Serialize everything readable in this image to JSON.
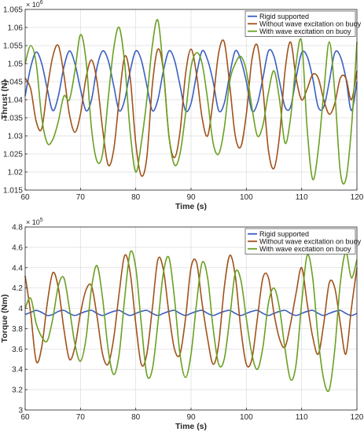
{
  "chart_data": [
    {
      "type": "line",
      "title": "",
      "xlabel": "Time (s)",
      "ylabel": "Thrust (N)",
      "xlim": [
        60,
        120
      ],
      "ylim": [
        1.015,
        1.065
      ],
      "y_exponent_label": "× 10",
      "y_exponent_power": "6",
      "xticks": [
        "60",
        "70",
        "80",
        "90",
        "100",
        "110",
        "120"
      ],
      "yticks": [
        "1.015",
        "1.02",
        "1.025",
        "1.03",
        "1.035",
        "1.04",
        "1.045",
        "1.05",
        "1.055",
        "1.06",
        "1.065"
      ],
      "grid": true,
      "legend_position": "top-right",
      "series": [
        {
          "name": "Rigid supported",
          "color": "#3a5fc0",
          "x": [
            60,
            61,
            62,
            63,
            64,
            65,
            66,
            67,
            68,
            69,
            70,
            71,
            72,
            73,
            74,
            75,
            76,
            77,
            78,
            79,
            80,
            81,
            82,
            83,
            84,
            85,
            86,
            87,
            88,
            89,
            90,
            91,
            92,
            93,
            94,
            95,
            96,
            97,
            98,
            99,
            100,
            101,
            102,
            103,
            104,
            105,
            106,
            107,
            108,
            109,
            110,
            111,
            112,
            113,
            114,
            115,
            116,
            117,
            118,
            119,
            120
          ],
          "values": [
            1.041,
            1.049,
            1.0532,
            1.05,
            1.043,
            1.037,
            1.041,
            1.049,
            1.0535,
            1.05,
            1.043,
            1.037,
            1.04,
            1.049,
            1.0535,
            1.051,
            1.044,
            1.037,
            1.04,
            1.048,
            1.0535,
            1.051,
            1.044,
            1.037,
            1.04,
            1.048,
            1.0535,
            1.051,
            1.044,
            1.037,
            1.039,
            1.047,
            1.0535,
            1.051,
            1.045,
            1.037,
            1.039,
            1.047,
            1.0535,
            1.051,
            1.045,
            1.037,
            1.039,
            1.046,
            1.0535,
            1.052,
            1.045,
            1.038,
            1.038,
            1.046,
            1.053,
            1.052,
            1.046,
            1.038,
            1.038,
            1.045,
            1.053,
            1.052,
            1.046,
            1.037,
            1.045
          ]
        },
        {
          "name": "Without wave excitation on buoy",
          "color": "#a0521a",
          "x": [
            60,
            61,
            62,
            63,
            64,
            65,
            66,
            67,
            68,
            69,
            70,
            71,
            72,
            73,
            74,
            75,
            76,
            77,
            78,
            79,
            80,
            81,
            82,
            83,
            84,
            85,
            86,
            87,
            88,
            89,
            90,
            91,
            92,
            93,
            94,
            95,
            96,
            97,
            98,
            99,
            100,
            101,
            102,
            103,
            104,
            105,
            106,
            107,
            108,
            109,
            110,
            111,
            112,
            113,
            114,
            115,
            116,
            117,
            118,
            119,
            120
          ],
          "values": [
            1.046,
            1.043,
            1.034,
            1.032,
            1.043,
            1.052,
            1.055,
            1.047,
            1.036,
            1.031,
            1.036,
            1.046,
            1.051,
            1.045,
            1.032,
            1.022,
            1.026,
            1.04,
            1.052,
            1.046,
            1.028,
            1.019,
            1.024,
            1.044,
            1.054,
            1.048,
            1.03,
            1.024,
            1.031,
            1.047,
            1.054,
            1.047,
            1.035,
            1.03,
            1.04,
            1.053,
            1.056,
            1.044,
            1.03,
            1.027,
            1.036,
            1.051,
            1.055,
            1.043,
            1.026,
            1.021,
            1.03,
            1.048,
            1.056,
            1.046,
            1.04,
            1.043,
            1.047,
            1.046,
            1.04,
            1.036,
            1.039,
            1.046,
            1.046,
            1.04,
            1.048
          ]
        },
        {
          "name": "With wave excitation on buoy",
          "color": "#6aa022",
          "x": [
            60,
            61,
            62,
            63,
            64,
            65,
            66,
            67,
            68,
            69,
            70,
            71,
            72,
            73,
            74,
            75,
            76,
            77,
            78,
            79,
            80,
            81,
            82,
            83,
            84,
            85,
            86,
            87,
            88,
            89,
            90,
            91,
            92,
            93,
            94,
            95,
            96,
            97,
            98,
            99,
            100,
            101,
            102,
            103,
            104,
            105,
            106,
            107,
            108,
            109,
            110,
            111,
            112,
            113,
            114,
            115,
            116,
            117,
            118,
            119,
            120
          ],
          "values": [
            1.05,
            1.055,
            1.05,
            1.035,
            1.028,
            1.029,
            1.034,
            1.041,
            1.04,
            1.048,
            1.058,
            1.051,
            1.032,
            1.023,
            1.025,
            1.04,
            1.054,
            1.06,
            1.05,
            1.031,
            1.02,
            1.028,
            1.04,
            1.055,
            1.062,
            1.048,
            1.03,
            1.022,
            1.025,
            1.036,
            1.049,
            1.053,
            1.05,
            1.04,
            1.028,
            1.025,
            1.032,
            1.045,
            1.05,
            1.052,
            1.048,
            1.038,
            1.03,
            1.033,
            1.042,
            1.048,
            1.04,
            1.028,
            1.035,
            1.05,
            1.056,
            1.032,
            1.018,
            1.026,
            1.042,
            1.056,
            1.042,
            1.02,
            1.018,
            1.032,
            1.056
          ]
        }
      ]
    },
    {
      "type": "line",
      "title": "",
      "xlabel": "Time (s)",
      "ylabel": "Torque (Nm)",
      "xlim": [
        60,
        120
      ],
      "ylim": [
        3.0,
        4.8
      ],
      "y_exponent_label": "× 10",
      "y_exponent_power": "5",
      "xticks": [
        "60",
        "70",
        "80",
        "90",
        "100",
        "110",
        "120"
      ],
      "yticks": [
        "3",
        "3.2",
        "3.4",
        "3.6",
        "3.8",
        "4",
        "4.2",
        "4.4",
        "4.6",
        "4.8"
      ],
      "grid": true,
      "legend_position": "top-right",
      "series": [
        {
          "name": "Rigid supported",
          "color": "#3a5fc0",
          "x": [
            60,
            61,
            62,
            63,
            64,
            65,
            66,
            67,
            68,
            69,
            70,
            71,
            72,
            73,
            74,
            75,
            76,
            77,
            78,
            79,
            80,
            81,
            82,
            83,
            84,
            85,
            86,
            87,
            88,
            89,
            90,
            91,
            92,
            93,
            94,
            95,
            96,
            97,
            98,
            99,
            100,
            101,
            102,
            103,
            104,
            105,
            106,
            107,
            108,
            109,
            110,
            111,
            112,
            113,
            114,
            115,
            116,
            117,
            118,
            119,
            120
          ],
          "values": [
            3.94,
            3.96,
            3.98,
            3.96,
            3.93,
            3.94,
            3.97,
            3.98,
            3.95,
            3.93,
            3.95,
            3.97,
            3.98,
            3.95,
            3.93,
            3.95,
            3.97,
            3.98,
            3.95,
            3.93,
            3.95,
            3.97,
            3.98,
            3.95,
            3.93,
            3.95,
            3.97,
            3.98,
            3.95,
            3.93,
            3.95,
            3.97,
            3.98,
            3.95,
            3.93,
            3.95,
            3.97,
            3.98,
            3.95,
            3.93,
            3.95,
            3.97,
            3.98,
            3.95,
            3.93,
            3.95,
            3.97,
            3.98,
            3.95,
            3.93,
            3.95,
            3.97,
            3.98,
            3.95,
            3.93,
            3.95,
            3.97,
            3.98,
            3.95,
            3.93,
            3.95
          ]
        },
        {
          "name": "Without wave excitation on buoy",
          "color": "#a0521a",
          "x": [
            60,
            61,
            62,
            63,
            64,
            65,
            66,
            67,
            68,
            69,
            70,
            71,
            72,
            73,
            74,
            75,
            76,
            77,
            78,
            79,
            80,
            81,
            82,
            83,
            84,
            85,
            86,
            87,
            88,
            89,
            90,
            91,
            92,
            93,
            94,
            95,
            96,
            97,
            98,
            99,
            100,
            101,
            102,
            103,
            104,
            105,
            106,
            107,
            108,
            109,
            110,
            111,
            112,
            113,
            114,
            115,
            116,
            117,
            118,
            119,
            120
          ],
          "values": [
            4.32,
            3.95,
            3.48,
            3.62,
            4.05,
            4.35,
            4.2,
            3.8,
            3.5,
            3.62,
            3.95,
            4.18,
            4.22,
            3.92,
            3.55,
            3.45,
            3.7,
            4.15,
            4.52,
            4.35,
            3.85,
            3.45,
            3.55,
            4.0,
            4.48,
            4.38,
            3.95,
            3.6,
            3.55,
            3.9,
            4.4,
            4.45,
            4.05,
            3.7,
            3.45,
            3.65,
            4.2,
            4.52,
            4.32,
            3.8,
            3.45,
            3.5,
            3.9,
            4.3,
            4.3,
            3.95,
            3.7,
            3.62,
            3.85,
            4.15,
            4.4,
            4.05,
            3.72,
            3.55,
            3.85,
            4.25,
            4.2,
            3.85,
            3.55,
            4.0,
            4.4
          ]
        },
        {
          "name": "With wave excitation on buoy",
          "color": "#6aa022",
          "x": [
            60,
            61,
            62,
            63,
            64,
            65,
            66,
            67,
            68,
            69,
            70,
            71,
            72,
            73,
            74,
            75,
            76,
            77,
            78,
            79,
            80,
            81,
            82,
            83,
            84,
            85,
            86,
            87,
            88,
            89,
            90,
            91,
            92,
            93,
            94,
            95,
            96,
            97,
            98,
            99,
            100,
            101,
            102,
            103,
            104,
            105,
            106,
            107,
            108,
            109,
            110,
            111,
            112,
            113,
            114,
            115,
            116,
            117,
            118,
            119,
            120
          ],
          "values": [
            4.0,
            4.1,
            3.85,
            3.72,
            3.68,
            3.9,
            4.22,
            4.3,
            4.0,
            3.65,
            3.48,
            3.7,
            4.2,
            4.42,
            4.1,
            3.6,
            3.35,
            3.55,
            4.1,
            4.55,
            4.4,
            3.85,
            3.35,
            3.4,
            3.85,
            4.35,
            4.5,
            4.1,
            3.55,
            3.32,
            3.55,
            4.05,
            4.45,
            4.3,
            3.8,
            3.45,
            3.5,
            3.9,
            4.35,
            4.28,
            3.9,
            3.55,
            3.4,
            3.62,
            4.05,
            4.2,
            4.0,
            3.6,
            3.3,
            3.45,
            4.05,
            4.52,
            4.3,
            3.7,
            3.3,
            3.2,
            3.6,
            4.25,
            4.55,
            4.3,
            4.48
          ]
        }
      ]
    }
  ]
}
